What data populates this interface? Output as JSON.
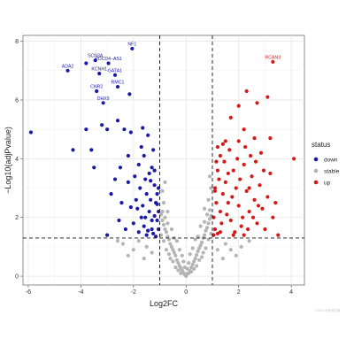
{
  "chart_data": {
    "type": "scatter",
    "title": "",
    "xlabel": "Log2FC",
    "ylabel": "−Log10(adjPvalue)",
    "xlim": [
      -6.2,
      4.5
    ],
    "ylim": [
      -0.3,
      8.2
    ],
    "x_ticks": [
      -6,
      -4,
      -2,
      0,
      2,
      4
    ],
    "y_ticks": [
      0,
      2,
      4,
      6,
      8
    ],
    "grid": true,
    "thresholds": {
      "log2fc": [
        -1,
        1
      ],
      "neg_log10_padj": 1.3
    },
    "legend": {
      "title": "status",
      "position": "right",
      "entries": [
        {
          "name": "down",
          "color": "#1a1aa6"
        },
        {
          "name": "stable",
          "color": "#b4b4b4"
        },
        {
          "name": "up",
          "color": "#d41a1a"
        }
      ]
    },
    "colors": {
      "down": "#1a1aa6",
      "stable": "#b4b4b4",
      "up": "#d41a1a"
    },
    "series": [
      {
        "name": "down",
        "points": [
          [
            -5.9,
            4.9
          ],
          [
            -4.5,
            7.0
          ],
          [
            -3.8,
            7.25
          ],
          [
            -3.45,
            7.35
          ],
          [
            -2.95,
            7.25
          ],
          [
            -2.05,
            7.75
          ],
          [
            -3.3,
            6.9
          ],
          [
            -2.7,
            6.85
          ],
          [
            -2.6,
            6.45
          ],
          [
            -3.4,
            6.3
          ],
          [
            -2.15,
            6.2
          ],
          [
            -3.15,
            5.9
          ],
          [
            -4.3,
            4.3
          ],
          [
            -3.6,
            4.3
          ],
          [
            -3.8,
            5.0
          ],
          [
            -3.2,
            5.15
          ],
          [
            -3.0,
            5.0
          ],
          [
            -2.6,
            5.3
          ],
          [
            -2.35,
            5.0
          ],
          [
            -2.1,
            4.9
          ],
          [
            -1.65,
            5.05
          ],
          [
            -1.45,
            4.8
          ],
          [
            -3.5,
            3.7
          ],
          [
            -2.5,
            3.7
          ],
          [
            -2.2,
            3.2
          ],
          [
            -1.6,
            4.1
          ],
          [
            -2.85,
            2.8
          ],
          [
            -2.45,
            2.5
          ],
          [
            -2.1,
            2.35
          ],
          [
            -3.0,
            1.4
          ],
          [
            -1.3,
            3.7
          ],
          [
            -1.2,
            3.1
          ],
          [
            -1.15,
            2.5
          ],
          [
            -1.1,
            1.9
          ],
          [
            -1.05,
            1.6
          ],
          [
            -1.25,
            1.45
          ],
          [
            -1.4,
            2.2
          ],
          [
            -1.5,
            2.8
          ],
          [
            -1.7,
            2.0
          ],
          [
            -1.8,
            1.5
          ],
          [
            -1.55,
            3.3
          ],
          [
            -1.35,
            2.6
          ],
          [
            -1.2,
            2.05
          ],
          [
            -1.6,
            1.7
          ],
          [
            -1.9,
            2.6
          ],
          [
            -2.0,
            1.8
          ],
          [
            -1.45,
            1.55
          ],
          [
            -1.3,
            1.9
          ],
          [
            -1.75,
            3.0
          ],
          [
            -1.1,
            2.8
          ],
          [
            -1.65,
            2.4
          ],
          [
            -2.3,
            1.6
          ],
          [
            -1.4,
            3.5
          ],
          [
            -1.25,
            4.3
          ],
          [
            -1.8,
            3.8
          ],
          [
            -2.7,
            3.3
          ],
          [
            -1.15,
            1.35
          ],
          [
            -1.5,
            1.4
          ],
          [
            -1.85,
            2.3
          ],
          [
            -2.55,
            1.9
          ],
          [
            -1.05,
            2.2
          ],
          [
            -1.3,
            1.6
          ],
          [
            -1.95,
            3.4
          ],
          [
            -1.2,
            3.6
          ],
          [
            -1.7,
            4.4
          ],
          [
            -2.2,
            4.1
          ],
          [
            -1.55,
            2.0
          ],
          [
            -1.1,
            2.45
          ],
          [
            -1.35,
            3.25
          ],
          [
            -1.05,
            3.0
          ]
        ]
      },
      {
        "name": "stable",
        "points": [
          [
            0.0,
            0.0
          ],
          [
            -0.05,
            0.05
          ],
          [
            0.05,
            0.08
          ],
          [
            -0.1,
            0.12
          ],
          [
            0.1,
            0.1
          ],
          [
            -0.15,
            0.2
          ],
          [
            0.15,
            0.18
          ],
          [
            -0.2,
            0.28
          ],
          [
            0.2,
            0.3
          ],
          [
            -0.25,
            0.35
          ],
          [
            0.25,
            0.4
          ],
          [
            -0.3,
            0.45
          ],
          [
            0.3,
            0.5
          ],
          [
            -0.35,
            0.55
          ],
          [
            0.35,
            0.6
          ],
          [
            -0.4,
            0.7
          ],
          [
            0.4,
            0.72
          ],
          [
            -0.45,
            0.8
          ],
          [
            0.45,
            0.85
          ],
          [
            -0.5,
            0.9
          ],
          [
            0.5,
            0.95
          ],
          [
            -0.55,
            1.0
          ],
          [
            0.55,
            1.05
          ],
          [
            -0.6,
            1.1
          ],
          [
            0.6,
            1.15
          ],
          [
            -0.65,
            1.25
          ],
          [
            0.65,
            1.3
          ],
          [
            -0.7,
            1.35
          ],
          [
            0.7,
            1.4
          ],
          [
            -0.75,
            1.5
          ],
          [
            0.75,
            1.55
          ],
          [
            -0.8,
            1.6
          ],
          [
            0.8,
            1.65
          ],
          [
            -0.85,
            1.75
          ],
          [
            0.85,
            1.8
          ],
          [
            -0.9,
            1.9
          ],
          [
            0.9,
            1.95
          ],
          [
            -0.95,
            2.1
          ],
          [
            0.95,
            2.05
          ],
          [
            -0.7,
            2.2
          ],
          [
            0.7,
            2.3
          ],
          [
            -0.85,
            2.5
          ],
          [
            0.85,
            2.6
          ],
          [
            -0.9,
            2.9
          ],
          [
            0.95,
            3.0
          ],
          [
            -0.8,
            3.2
          ],
          [
            0.9,
            3.4
          ],
          [
            -0.6,
            0.6
          ],
          [
            0.6,
            0.65
          ],
          [
            -0.4,
            0.3
          ],
          [
            0.4,
            0.35
          ],
          [
            -0.75,
            0.9
          ],
          [
            0.75,
            0.95
          ],
          [
            -0.2,
            0.1
          ],
          [
            0.2,
            0.15
          ],
          [
            -0.5,
            0.5
          ],
          [
            0.5,
            0.55
          ],
          [
            -0.65,
            0.75
          ],
          [
            0.65,
            0.8
          ],
          [
            -0.3,
            0.2
          ],
          [
            0.3,
            0.25
          ],
          [
            -0.85,
            1.2
          ],
          [
            0.85,
            1.25
          ],
          [
            -0.95,
            1.4
          ],
          [
            0.95,
            1.45
          ],
          [
            -0.55,
            1.6
          ],
          [
            0.55,
            1.7
          ],
          [
            -0.45,
            1.3
          ],
          [
            0.45,
            1.35
          ],
          [
            -0.9,
            2.2
          ],
          [
            0.9,
            2.25
          ],
          [
            -0.8,
            2.0
          ],
          [
            0.8,
            2.1
          ],
          [
            -0.7,
            1.8
          ],
          [
            0.7,
            1.85
          ],
          [
            -1.6,
            0.6
          ],
          [
            -2.0,
            0.9
          ],
          [
            -2.4,
            1.1
          ],
          [
            -1.3,
            0.8
          ],
          [
            -1.8,
            1.2
          ],
          [
            -2.2,
            0.7
          ],
          [
            -1.5,
            1.0
          ],
          [
            -2.6,
            1.2
          ],
          [
            1.4,
            0.6
          ],
          [
            1.7,
            0.9
          ],
          [
            2.1,
            1.0
          ],
          [
            1.5,
            1.1
          ],
          [
            1.9,
            0.7
          ],
          [
            2.4,
            1.2
          ],
          [
            1.2,
            0.9
          ],
          [
            -0.1,
            0.5
          ],
          [
            0.1,
            0.45
          ],
          [
            -0.25,
            0.9
          ],
          [
            0.25,
            0.95
          ],
          [
            -0.35,
            1.2
          ],
          [
            0.35,
            1.25
          ],
          [
            -0.15,
            0.7
          ],
          [
            0.15,
            0.75
          ],
          [
            -0.05,
            0.3
          ],
          [
            0.05,
            0.25
          ]
        ]
      },
      {
        "name": "up",
        "points": [
          [
            3.3,
            7.3
          ],
          [
            4.1,
            4.0
          ],
          [
            3.2,
            4.7
          ],
          [
            2.7,
            5.9
          ],
          [
            3.1,
            6.1
          ],
          [
            2.2,
            5.0
          ],
          [
            1.7,
            5.4
          ],
          [
            2.0,
            5.8
          ],
          [
            2.3,
            6.3
          ],
          [
            1.5,
            4.6
          ],
          [
            2.6,
            4.7
          ],
          [
            1.3,
            4.1
          ],
          [
            1.2,
            3.6
          ],
          [
            1.1,
            3.0
          ],
          [
            1.15,
            2.5
          ],
          [
            1.05,
            2.0
          ],
          [
            1.1,
            1.6
          ],
          [
            1.2,
            1.45
          ],
          [
            1.3,
            2.2
          ],
          [
            1.4,
            2.8
          ],
          [
            1.5,
            3.2
          ],
          [
            1.6,
            2.5
          ],
          [
            1.7,
            1.9
          ],
          [
            1.8,
            3.6
          ],
          [
            1.9,
            3.0
          ],
          [
            2.0,
            2.4
          ],
          [
            2.1,
            1.7
          ],
          [
            2.2,
            3.8
          ],
          [
            2.3,
            2.9
          ],
          [
            2.4,
            2.2
          ],
          [
            2.5,
            3.4
          ],
          [
            2.6,
            2.6
          ],
          [
            2.7,
            1.8
          ],
          [
            2.8,
            3.1
          ],
          [
            2.9,
            2.3
          ],
          [
            3.0,
            1.6
          ],
          [
            3.1,
            2.7
          ],
          [
            3.2,
            3.5
          ],
          [
            3.3,
            2.0
          ],
          [
            3.5,
            1.4
          ],
          [
            1.25,
            3.3
          ],
          [
            1.35,
            1.8
          ],
          [
            1.45,
            3.9
          ],
          [
            1.55,
            2.1
          ],
          [
            1.65,
            4.3
          ],
          [
            1.75,
            2.7
          ],
          [
            1.85,
            1.5
          ],
          [
            1.95,
            4.0
          ],
          [
            2.05,
            3.3
          ],
          [
            2.15,
            2.0
          ],
          [
            2.25,
            4.4
          ],
          [
            2.35,
            1.6
          ],
          [
            2.45,
            4.1
          ],
          [
            2.55,
            2.0
          ],
          [
            2.65,
            3.9
          ],
          [
            2.75,
            2.4
          ],
          [
            2.85,
            4.2
          ],
          [
            2.95,
            3.6
          ],
          [
            1.1,
            2.9
          ],
          [
            1.2,
            4.4
          ],
          [
            1.05,
            1.4
          ],
          [
            1.3,
            1.5
          ],
          [
            1.15,
            3.9
          ],
          [
            1.4,
            4.5
          ],
          [
            1.6,
            3.5
          ],
          [
            1.8,
            1.4
          ],
          [
            2.0,
            4.6
          ],
          [
            2.2,
            1.4
          ],
          [
            2.4,
            3.0
          ],
          [
            3.4,
            2.5
          ]
        ]
      }
    ],
    "annotations": [
      {
        "text": "NF1",
        "x": -2.05,
        "y": 7.75,
        "status": "down"
      },
      {
        "text": "SCN3A",
        "x": -3.45,
        "y": 7.35,
        "status": "down"
      },
      {
        "text": "ADA2",
        "x": -4.5,
        "y": 7.0,
        "status": "down"
      },
      {
        "text": "PDCD4−AS1",
        "x": -2.95,
        "y": 7.25,
        "status": "down"
      },
      {
        "text": "KCNH1",
        "x": -3.3,
        "y": 6.9,
        "status": "down"
      },
      {
        "text": "GATA1",
        "x": -2.7,
        "y": 6.85,
        "status": "down"
      },
      {
        "text": "CNR2",
        "x": -3.4,
        "y": 6.3,
        "status": "down"
      },
      {
        "text": "RMC1",
        "x": -2.6,
        "y": 6.45,
        "status": "down"
      },
      {
        "text": "DHX9",
        "x": -3.15,
        "y": 5.9,
        "status": "down"
      },
      {
        "text": "RCAN3",
        "x": 3.3,
        "y": 7.3,
        "status": "up"
      }
    ],
    "watermark": "CSDN @鱼低吃薯"
  }
}
